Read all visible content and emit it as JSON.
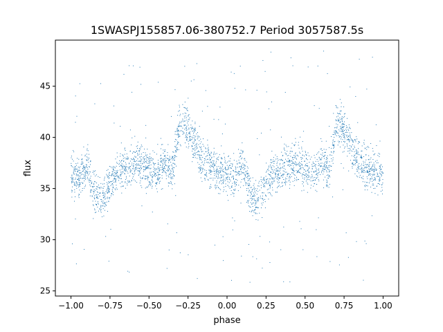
{
  "chart_data": {
    "type": "scatter",
    "title": "1SWASPJ155857.06-380752.7 Period 3057587.5s",
    "xlabel": "phase",
    "ylabel": "flux",
    "xlim": [
      -1.1,
      1.1
    ],
    "ylim": [
      24.5,
      49.5
    ],
    "xticks": [
      -1.0,
      -0.75,
      -0.5,
      -0.25,
      0.0,
      0.25,
      0.5,
      0.75,
      1.0
    ],
    "xtick_labels": [
      "−1.00",
      "−0.75",
      "−0.50",
      "−0.25",
      "0.00",
      "0.25",
      "0.50",
      "0.75",
      "1.00"
    ],
    "yticks": [
      25,
      30,
      35,
      40,
      45
    ],
    "ytick_labels": [
      "25",
      "30",
      "35",
      "40",
      "45"
    ],
    "grid": false,
    "marker_color": "#1f77b4",
    "series": [
      {
        "point_count_note": "dense light curve folded twice over phase",
        "profile": [
          {
            "phase": -1.0,
            "flux": 36.5
          },
          {
            "phase": -0.95,
            "flux": 36.0
          },
          {
            "phase": -0.9,
            "flux": 37.5
          },
          {
            "phase": -0.85,
            "flux": 34.5
          },
          {
            "phase": -0.8,
            "flux": 34.0
          },
          {
            "phase": -0.75,
            "flux": 35.5
          },
          {
            "phase": -0.7,
            "flux": 36.5
          },
          {
            "phase": -0.65,
            "flux": 37.0
          },
          {
            "phase": -0.6,
            "flux": 37.5
          },
          {
            "phase": -0.55,
            "flux": 37.5
          },
          {
            "phase": -0.5,
            "flux": 37.0
          },
          {
            "phase": -0.45,
            "flux": 36.5
          },
          {
            "phase": -0.4,
            "flux": 37.5
          },
          {
            "phase": -0.35,
            "flux": 36.5
          },
          {
            "phase": -0.3,
            "flux": 41.5
          },
          {
            "phase": -0.25,
            "flux": 41.0
          },
          {
            "phase": -0.2,
            "flux": 39.0
          },
          {
            "phase": -0.15,
            "flux": 37.5
          },
          {
            "phase": -0.1,
            "flux": 37.0
          },
          {
            "phase": -0.05,
            "flux": 36.5
          },
          {
            "phase": 0.0,
            "flux": 36.5
          },
          {
            "phase": 0.05,
            "flux": 36.0
          },
          {
            "phase": 0.1,
            "flux": 37.5
          },
          {
            "phase": 0.15,
            "flux": 34.5
          },
          {
            "phase": 0.2,
            "flux": 34.0
          },
          {
            "phase": 0.25,
            "flux": 35.5
          },
          {
            "phase": 0.3,
            "flux": 36.5
          },
          {
            "phase": 0.35,
            "flux": 37.0
          },
          {
            "phase": 0.4,
            "flux": 37.5
          },
          {
            "phase": 0.45,
            "flux": 37.5
          },
          {
            "phase": 0.5,
            "flux": 37.0
          },
          {
            "phase": 0.55,
            "flux": 36.5
          },
          {
            "phase": 0.6,
            "flux": 37.5
          },
          {
            "phase": 0.65,
            "flux": 36.5
          },
          {
            "phase": 0.7,
            "flux": 41.5
          },
          {
            "phase": 0.75,
            "flux": 41.0
          },
          {
            "phase": 0.8,
            "flux": 39.0
          },
          {
            "phase": 0.85,
            "flux": 37.5
          },
          {
            "phase": 0.9,
            "flux": 37.0
          },
          {
            "phase": 0.95,
            "flux": 36.5
          },
          {
            "phase": 1.0,
            "flux": 36.5
          }
        ],
        "scatter_sd": 1.4,
        "outlier_range": [
          25.5,
          48.5
        ]
      }
    ]
  }
}
